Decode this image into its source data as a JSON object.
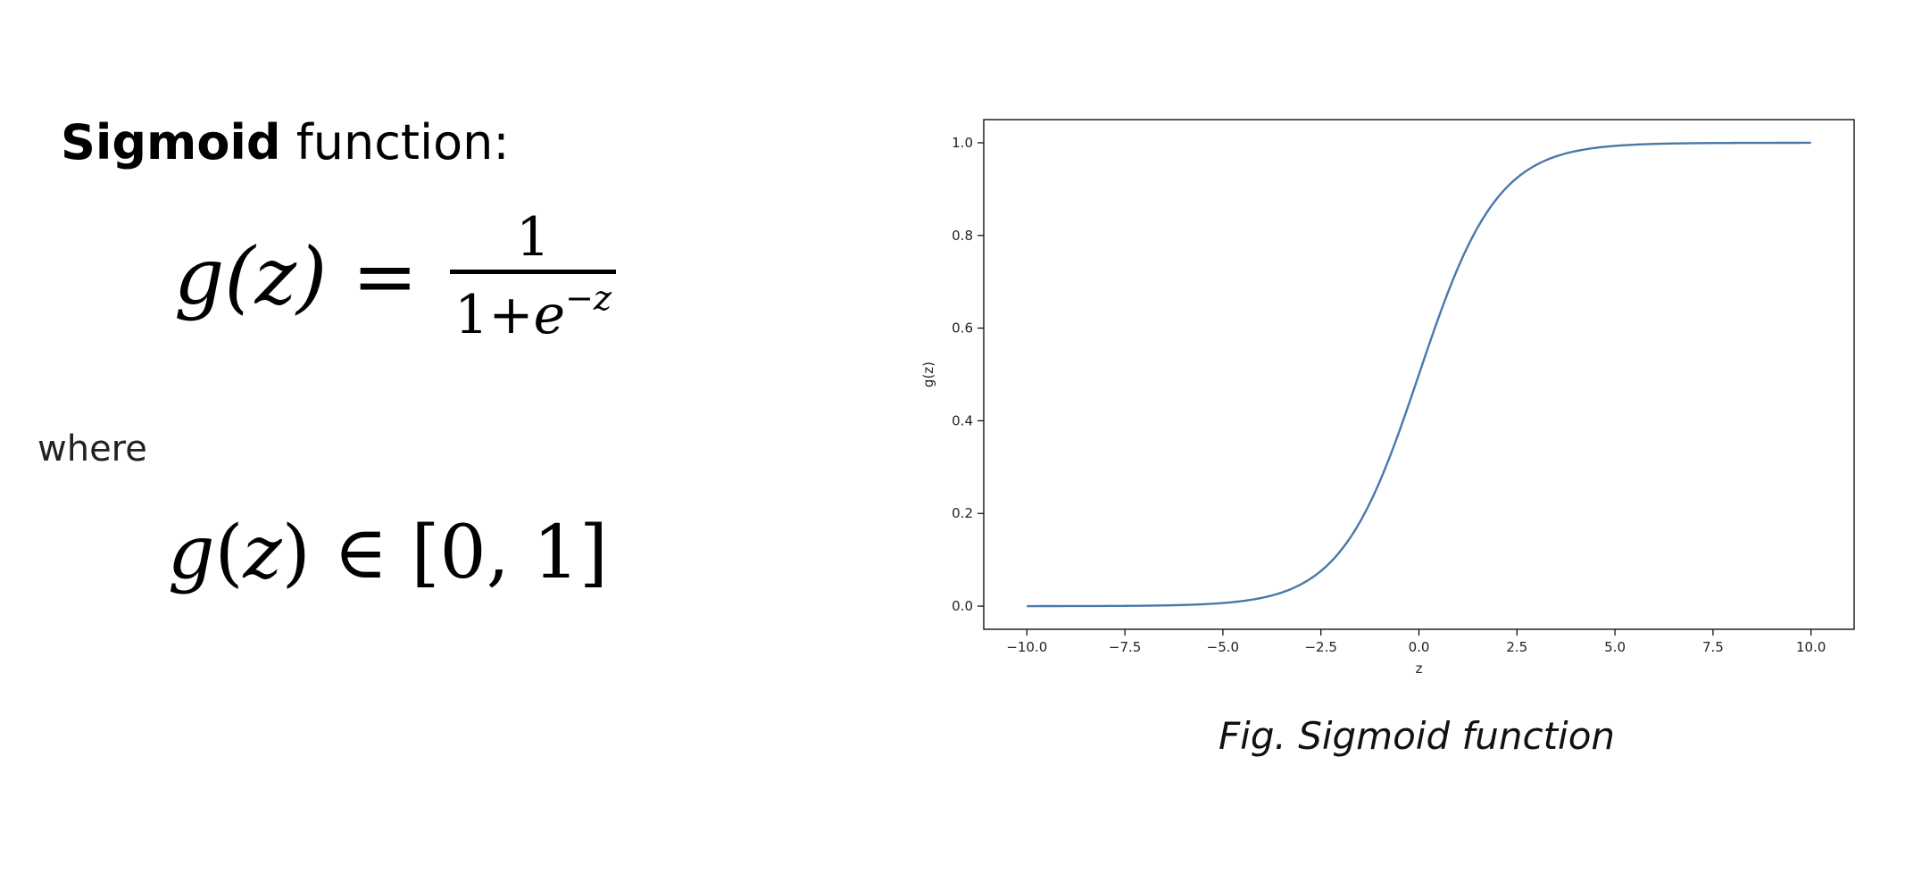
{
  "heading": {
    "bold": "Sigmoid",
    "rest": " function:"
  },
  "formula": {
    "lhs": "g(z)",
    "equals": "=",
    "numerator": "1",
    "denominator_base": "1+",
    "denominator_e": "e",
    "denominator_exp": "−z"
  },
  "where_text": "where",
  "range": {
    "g": "g",
    "open": "(",
    "z": "z",
    "close": ")",
    "in": " ∈ ",
    "interval": "[0, 1]"
  },
  "caption": "Fig. Sigmoid function",
  "colors": {
    "line": "#4a78a8",
    "axes": "#000000",
    "text": "#222222"
  },
  "chart_data": {
    "type": "line",
    "title": "",
    "xlabel": "z",
    "ylabel": "g(z)",
    "xlim": [
      -11.1,
      11.1
    ],
    "ylim": [
      -0.05,
      1.05
    ],
    "function": "1/(1+exp(-z))",
    "x_range": [
      -10.0,
      10.0
    ],
    "xticks": [
      -10.0,
      -7.5,
      -5.0,
      -2.5,
      0.0,
      2.5,
      5.0,
      7.5,
      10.0
    ],
    "xtick_labels": [
      "−10.0",
      "−7.5",
      "−5.0",
      "−2.5",
      "0.0",
      "2.5",
      "5.0",
      "7.5",
      "10.0"
    ],
    "yticks": [
      0.0,
      0.2,
      0.4,
      0.6,
      0.8,
      1.0
    ],
    "ytick_labels": [
      "0.0",
      "0.2",
      "0.4",
      "0.6",
      "0.8",
      "1.0"
    ],
    "series": [
      {
        "x": [
          -10.0,
          -7.5,
          -5.0,
          -4.0,
          -3.0,
          -2.5,
          -2.0,
          -1.5,
          -1.0,
          -0.5,
          0.0,
          0.5,
          1.0,
          1.5,
          2.0,
          2.5,
          3.0,
          4.0,
          5.0,
          7.5,
          10.0
        ],
        "y": [
          0.0,
          0.001,
          0.007,
          0.018,
          0.047,
          0.076,
          0.119,
          0.182,
          0.269,
          0.378,
          0.5,
          0.622,
          0.731,
          0.818,
          0.881,
          0.924,
          0.953,
          0.982,
          0.993,
          0.999,
          1.0
        ]
      }
    ],
    "grid": false,
    "legend": "none"
  }
}
